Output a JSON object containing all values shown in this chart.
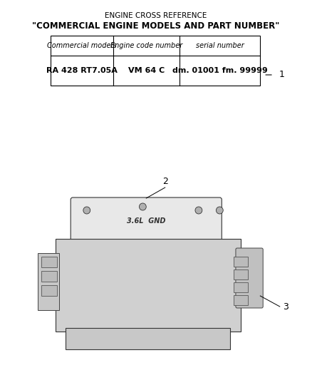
{
  "title_line1": "ENGINE CROSS REFERENCE",
  "title_line2": "\"COMMERCIAL ENGINE MODELS AND PART NUMBER\"",
  "table_headers": [
    "Commercial models",
    "Engine code number",
    "serial number"
  ],
  "table_row": [
    "RA 428 RT7.05A",
    "VM 64 C",
    "dm. 01001 fm. 99999"
  ],
  "label_1": "1",
  "label_2": "2",
  "label_3": "3",
  "bg_color": "#ffffff",
  "text_color": "#000000",
  "table_border_color": "#000000",
  "title1_fontsize": 7.5,
  "title2_fontsize": 8.5,
  "header_fontsize": 7,
  "cell_fontsize": 8
}
